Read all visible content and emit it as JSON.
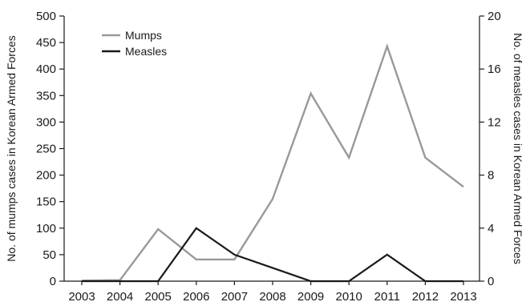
{
  "chart_data": {
    "type": "line",
    "categories": [
      "2003",
      "2004",
      "2005",
      "2006",
      "2007",
      "2008",
      "2009",
      "2010",
      "2011",
      "2012",
      "2013"
    ],
    "series": [
      {
        "name": "Mumps",
        "axis": "left",
        "color": "#999999",
        "values": [
          1,
          2,
          98,
          41,
          41,
          155,
          354,
          233,
          443,
          233,
          178
        ]
      },
      {
        "name": "Measles",
        "axis": "right",
        "color": "#1a1a1a",
        "values": [
          0,
          0,
          0,
          4,
          2,
          1,
          0,
          0,
          2,
          0,
          0
        ]
      }
    ],
    "ylabel_left": "No. of mumps cases in Korean Armed Forces",
    "ylabel_right": "No. of measles cases in Korean Armed Forces",
    "ylim_left": [
      0,
      500
    ],
    "yticks_left": [
      0,
      50,
      100,
      150,
      200,
      250,
      300,
      350,
      400,
      450,
      500
    ],
    "ylim_right": [
      0,
      20
    ],
    "yticks_right": [
      0,
      4,
      8,
      12,
      16,
      20
    ],
    "grid": false,
    "legend_position": "top-left"
  }
}
